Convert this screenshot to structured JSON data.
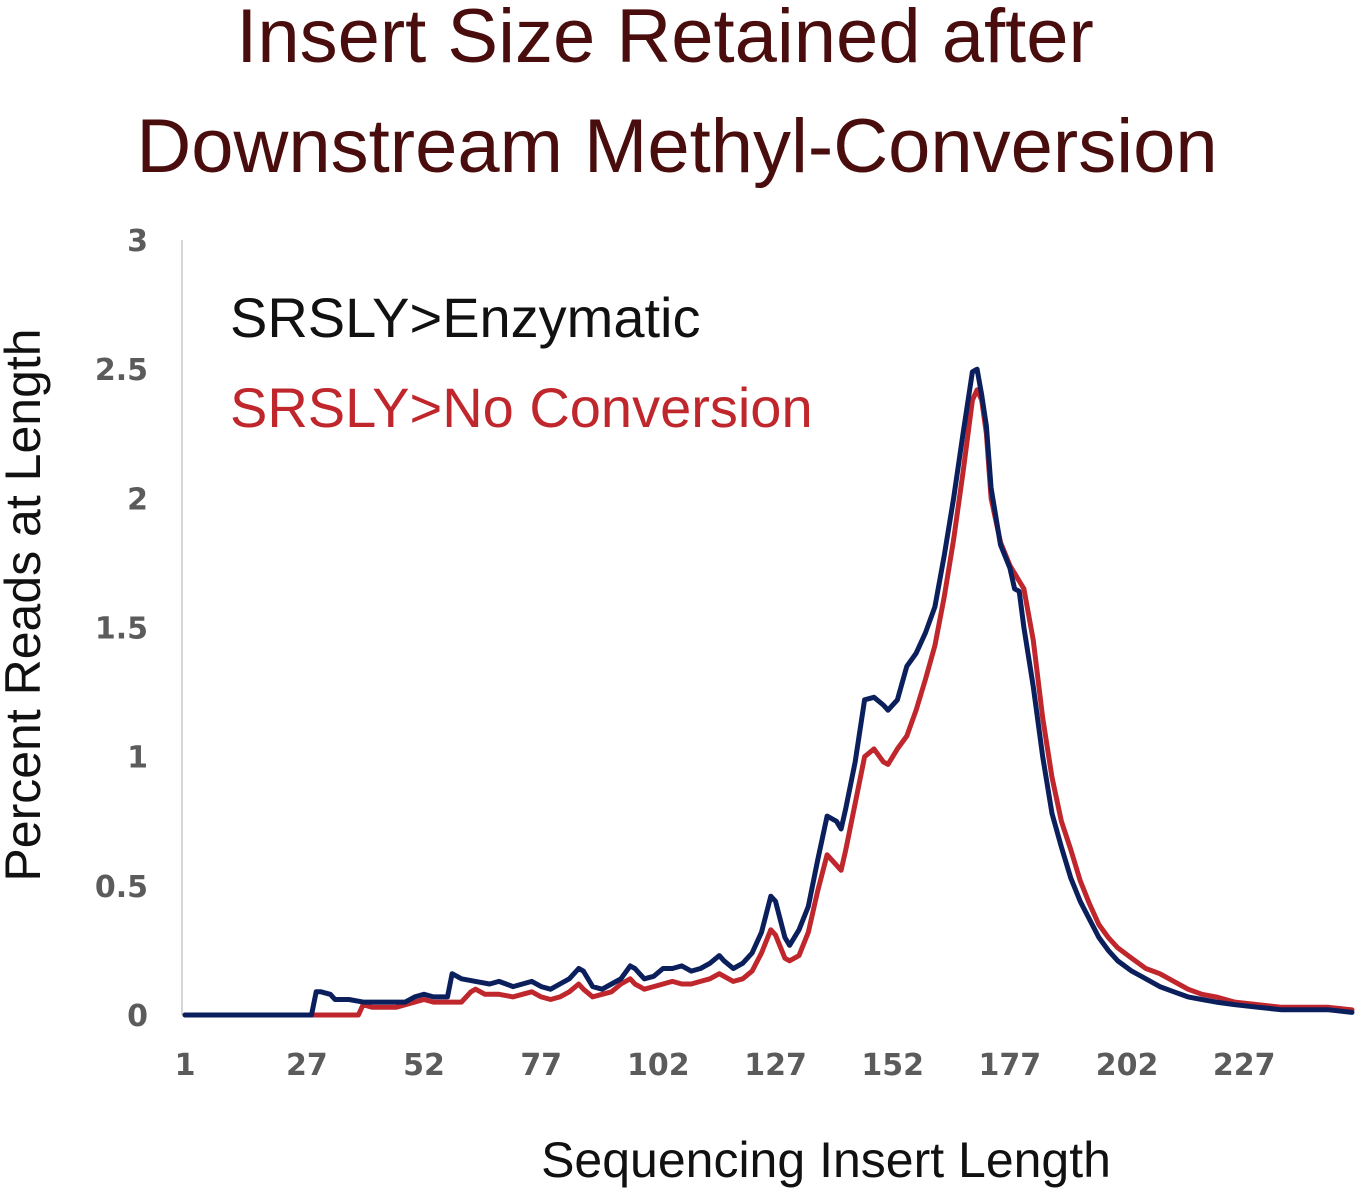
{
  "chart_data": {
    "type": "line",
    "title_lines": [
      "Insert Size Retained after",
      "Downstream Methyl-Conversion"
    ],
    "xlabel": "Sequencing Insert Length",
    "ylabel": "Percent Reads at Length",
    "x_tick_labels": [
      "1",
      "27",
      "52",
      "77",
      "102",
      "127",
      "152",
      "177",
      "202",
      "227"
    ],
    "y_tick_labels": [
      "0",
      "0.5",
      "1",
      "1.5",
      "2",
      "2.5",
      "3"
    ],
    "xlim": [
      1,
      250
    ],
    "ylim": [
      0,
      3
    ],
    "grid": false,
    "legend_position": "top-left",
    "series": [
      {
        "name": "SRSLY>Enzymatic",
        "color": "#0b1f5c",
        "legend_color": "#111111",
        "points": [
          [
            1,
            0
          ],
          [
            28,
            0
          ],
          [
            29,
            0.09
          ],
          [
            30,
            0.09
          ],
          [
            32,
            0.08
          ],
          [
            33,
            0.06
          ],
          [
            36,
            0.06
          ],
          [
            39,
            0.05
          ],
          [
            41,
            0.05
          ],
          [
            44,
            0.05
          ],
          [
            46,
            0.05
          ],
          [
            48,
            0.05
          ],
          [
            50,
            0.07
          ],
          [
            52,
            0.08
          ],
          [
            54,
            0.07
          ],
          [
            57,
            0.07
          ],
          [
            58,
            0.16
          ],
          [
            60,
            0.14
          ],
          [
            63,
            0.13
          ],
          [
            66,
            0.12
          ],
          [
            68,
            0.13
          ],
          [
            71,
            0.11
          ],
          [
            73,
            0.12
          ],
          [
            75,
            0.13
          ],
          [
            77,
            0.11
          ],
          [
            79,
            0.1
          ],
          [
            81,
            0.12
          ],
          [
            83,
            0.14
          ],
          [
            85,
            0.18
          ],
          [
            86,
            0.17
          ],
          [
            88,
            0.11
          ],
          [
            90,
            0.1
          ],
          [
            92,
            0.12
          ],
          [
            94,
            0.14
          ],
          [
            96,
            0.19
          ],
          [
            97,
            0.18
          ],
          [
            99,
            0.14
          ],
          [
            101,
            0.15
          ],
          [
            103,
            0.18
          ],
          [
            105,
            0.18
          ],
          [
            107,
            0.19
          ],
          [
            109,
            0.17
          ],
          [
            111,
            0.18
          ],
          [
            113,
            0.2
          ],
          [
            115,
            0.23
          ],
          [
            116,
            0.21
          ],
          [
            118,
            0.18
          ],
          [
            120,
            0.2
          ],
          [
            122,
            0.24
          ],
          [
            124,
            0.32
          ],
          [
            126,
            0.46
          ],
          [
            127,
            0.44
          ],
          [
            129,
            0.3
          ],
          [
            130,
            0.27
          ],
          [
            132,
            0.33
          ],
          [
            134,
            0.42
          ],
          [
            136,
            0.6
          ],
          [
            138,
            0.77
          ],
          [
            140,
            0.75
          ],
          [
            141,
            0.72
          ],
          [
            142,
            0.8
          ],
          [
            144,
            0.98
          ],
          [
            146,
            1.22
          ],
          [
            148,
            1.23
          ],
          [
            150,
            1.2
          ],
          [
            151,
            1.18
          ],
          [
            153,
            1.22
          ],
          [
            155,
            1.35
          ],
          [
            157,
            1.4
          ],
          [
            159,
            1.48
          ],
          [
            161,
            1.58
          ],
          [
            163,
            1.78
          ],
          [
            165,
            2.0
          ],
          [
            167,
            2.25
          ],
          [
            169,
            2.49
          ],
          [
            170,
            2.5
          ],
          [
            171,
            2.4
          ],
          [
            172,
            2.28
          ],
          [
            173,
            2.04
          ],
          [
            175,
            1.82
          ],
          [
            177,
            1.73
          ],
          [
            178,
            1.65
          ],
          [
            179,
            1.64
          ],
          [
            180,
            1.5
          ],
          [
            182,
            1.27
          ],
          [
            184,
            1.0
          ],
          [
            186,
            0.78
          ],
          [
            188,
            0.65
          ],
          [
            190,
            0.53
          ],
          [
            192,
            0.44
          ],
          [
            194,
            0.37
          ],
          [
            196,
            0.3
          ],
          [
            198,
            0.25
          ],
          [
            200,
            0.21
          ],
          [
            203,
            0.17
          ],
          [
            206,
            0.14
          ],
          [
            209,
            0.11
          ],
          [
            212,
            0.09
          ],
          [
            215,
            0.07
          ],
          [
            218,
            0.06
          ],
          [
            221,
            0.05
          ],
          [
            225,
            0.04
          ],
          [
            230,
            0.03
          ],
          [
            235,
            0.02
          ],
          [
            240,
            0.02
          ],
          [
            245,
            0.02
          ],
          [
            250,
            0.01
          ]
        ]
      },
      {
        "name": "SRSLY>No Conversion",
        "color": "#c0272d",
        "legend_color": "#c0272d",
        "points": [
          [
            1,
            0
          ],
          [
            31,
            0
          ],
          [
            33,
            0
          ],
          [
            36,
            0
          ],
          [
            38,
            0
          ],
          [
            39,
            0.04
          ],
          [
            41,
            0.03
          ],
          [
            44,
            0.03
          ],
          [
            46,
            0.03
          ],
          [
            48,
            0.04
          ],
          [
            50,
            0.05
          ],
          [
            52,
            0.06
          ],
          [
            54,
            0.05
          ],
          [
            57,
            0.05
          ],
          [
            60,
            0.05
          ],
          [
            62,
            0.09
          ],
          [
            63,
            0.1
          ],
          [
            65,
            0.08
          ],
          [
            68,
            0.08
          ],
          [
            71,
            0.07
          ],
          [
            73,
            0.08
          ],
          [
            75,
            0.09
          ],
          [
            77,
            0.07
          ],
          [
            79,
            0.06
          ],
          [
            81,
            0.07
          ],
          [
            83,
            0.09
          ],
          [
            85,
            0.12
          ],
          [
            86,
            0.1
          ],
          [
            88,
            0.07
          ],
          [
            90,
            0.08
          ],
          [
            92,
            0.09
          ],
          [
            94,
            0.12
          ],
          [
            96,
            0.14
          ],
          [
            97,
            0.12
          ],
          [
            99,
            0.1
          ],
          [
            101,
            0.11
          ],
          [
            103,
            0.12
          ],
          [
            105,
            0.13
          ],
          [
            107,
            0.12
          ],
          [
            109,
            0.12
          ],
          [
            111,
            0.13
          ],
          [
            113,
            0.14
          ],
          [
            115,
            0.16
          ],
          [
            116,
            0.15
          ],
          [
            118,
            0.13
          ],
          [
            120,
            0.14
          ],
          [
            122,
            0.17
          ],
          [
            124,
            0.24
          ],
          [
            126,
            0.33
          ],
          [
            127,
            0.31
          ],
          [
            129,
            0.22
          ],
          [
            130,
            0.21
          ],
          [
            132,
            0.23
          ],
          [
            134,
            0.32
          ],
          [
            136,
            0.48
          ],
          [
            138,
            0.62
          ],
          [
            140,
            0.58
          ],
          [
            141,
            0.56
          ],
          [
            142,
            0.64
          ],
          [
            144,
            0.82
          ],
          [
            146,
            1.0
          ],
          [
            148,
            1.03
          ],
          [
            150,
            0.98
          ],
          [
            151,
            0.97
          ],
          [
            153,
            1.03
          ],
          [
            155,
            1.08
          ],
          [
            157,
            1.18
          ],
          [
            159,
            1.3
          ],
          [
            161,
            1.43
          ],
          [
            163,
            1.62
          ],
          [
            165,
            1.84
          ],
          [
            167,
            2.1
          ],
          [
            169,
            2.38
          ],
          [
            170,
            2.42
          ],
          [
            171,
            2.38
          ],
          [
            172,
            2.25
          ],
          [
            173,
            2.0
          ],
          [
            175,
            1.83
          ],
          [
            177,
            1.74
          ],
          [
            179,
            1.68
          ],
          [
            180,
            1.65
          ],
          [
            182,
            1.45
          ],
          [
            184,
            1.15
          ],
          [
            186,
            0.92
          ],
          [
            188,
            0.75
          ],
          [
            190,
            0.64
          ],
          [
            192,
            0.52
          ],
          [
            194,
            0.43
          ],
          [
            196,
            0.35
          ],
          [
            198,
            0.3
          ],
          [
            200,
            0.26
          ],
          [
            203,
            0.22
          ],
          [
            206,
            0.18
          ],
          [
            209,
            0.16
          ],
          [
            212,
            0.13
          ],
          [
            215,
            0.1
          ],
          [
            218,
            0.08
          ],
          [
            221,
            0.07
          ],
          [
            225,
            0.05
          ],
          [
            230,
            0.04
          ],
          [
            235,
            0.03
          ],
          [
            240,
            0.03
          ],
          [
            245,
            0.03
          ],
          [
            250,
            0.02
          ]
        ]
      }
    ]
  }
}
